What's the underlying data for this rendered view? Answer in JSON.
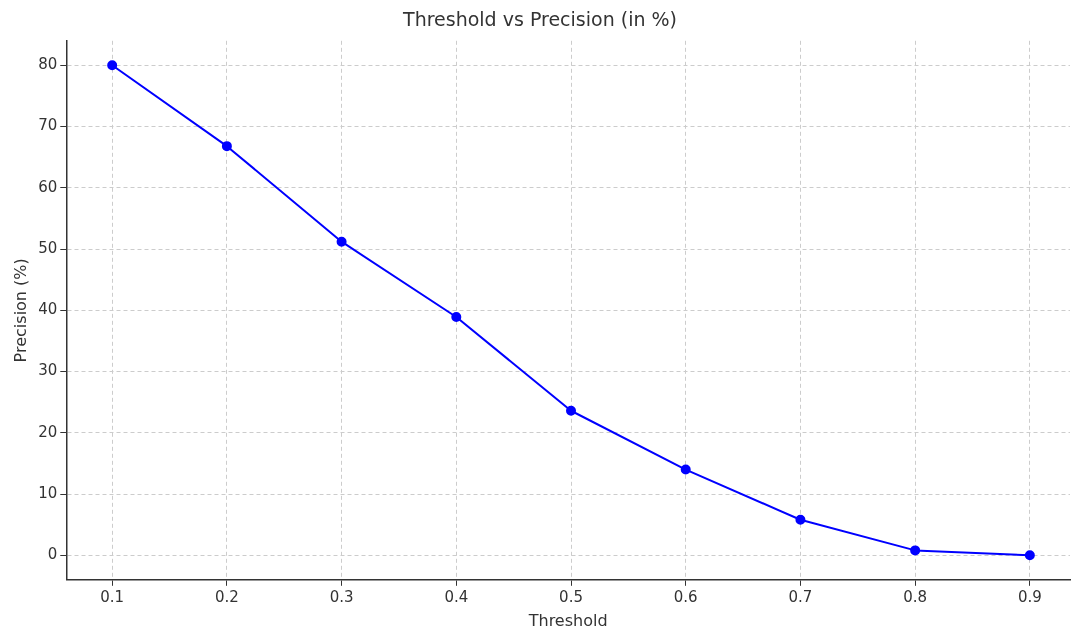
{
  "chart_data": {
    "type": "line",
    "title": "Threshold vs Precision (in %)",
    "xlabel": "Threshold",
    "ylabel": "Precision (%)",
    "x": [
      0.1,
      0.2,
      0.3,
      0.4,
      0.5,
      0.6,
      0.7,
      0.8,
      0.9
    ],
    "series": [
      {
        "color": "#0000ff",
        "values": [
          80,
          66.8,
          51.2,
          38.9,
          23.6,
          14.0,
          5.8,
          0.8,
          0
        ]
      }
    ],
    "xlim": [
      0.06,
      0.935
    ],
    "xticks": [
      0.1,
      0.2,
      0.3,
      0.4,
      0.5,
      0.6,
      0.7,
      0.8,
      0.9
    ],
    "ylim": [
      -4,
      84
    ],
    "yticks": [
      0,
      10,
      20,
      30,
      40,
      50,
      60,
      70,
      80
    ],
    "grid": true,
    "marker": "circle",
    "line_style": "solid",
    "legend": false
  }
}
